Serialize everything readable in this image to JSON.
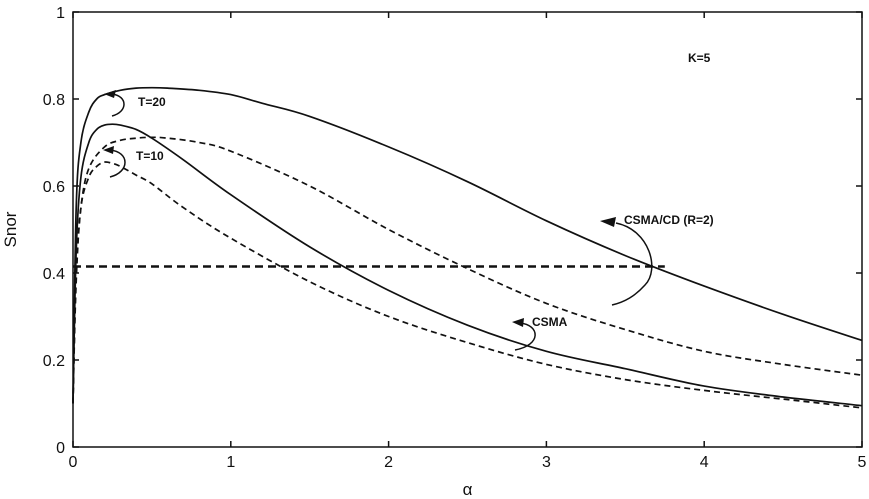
{
  "chart_data": {
    "type": "line",
    "title": "",
    "xlabel": "α",
    "ylabel": "Snor",
    "xlim": [
      0,
      5
    ],
    "ylim": [
      0,
      1
    ],
    "xticks": [
      0,
      1,
      2,
      3,
      4,
      5
    ],
    "yticks": [
      0,
      0.2,
      0.4,
      0.6,
      0.8,
      1
    ],
    "xtick_labels": [
      "0",
      "1",
      "2",
      "3",
      "4",
      "5"
    ],
    "ytick_labels": [
      "0",
      "0.2",
      "0.4",
      "0.6",
      "0.8",
      "1"
    ],
    "grid": false,
    "legend": "none",
    "annotations": [
      "K=5",
      "T=20",
      "T=10",
      "CSMA/CD (R=2)",
      "CSMA"
    ],
    "series": [
      {
        "style": "solid",
        "x": [
          0,
          0.02,
          0.05,
          0.1,
          0.15,
          0.2,
          0.3,
          0.4,
          0.5,
          0.6,
          0.8,
          1.0,
          1.2,
          1.5,
          2.0,
          2.5,
          3.0,
          3.5,
          4.0,
          4.5,
          5.0
        ],
        "y": [
          0.1,
          0.55,
          0.7,
          0.77,
          0.8,
          0.81,
          0.82,
          0.825,
          0.826,
          0.825,
          0.82,
          0.81,
          0.79,
          0.76,
          0.69,
          0.61,
          0.52,
          0.44,
          0.37,
          0.305,
          0.245
        ]
      },
      {
        "style": "dashed",
        "x": [
          0,
          0.02,
          0.05,
          0.1,
          0.2,
          0.3,
          0.4,
          0.5,
          0.6,
          0.8,
          1.0,
          1.5,
          2.0,
          2.5,
          3.0,
          3.5,
          4.0,
          4.5,
          5.0
        ],
        "y": [
          0.1,
          0.4,
          0.55,
          0.64,
          0.69,
          0.705,
          0.71,
          0.712,
          0.71,
          0.7,
          0.68,
          0.6,
          0.5,
          0.41,
          0.33,
          0.27,
          0.22,
          0.19,
          0.165
        ]
      },
      {
        "style": "solid",
        "x": [
          0,
          0.02,
          0.05,
          0.1,
          0.15,
          0.2,
          0.25,
          0.3,
          0.4,
          0.5,
          0.7,
          1.0,
          1.5,
          2.0,
          2.5,
          3.0,
          3.5,
          4.0,
          4.5,
          5.0
        ],
        "y": [
          0.1,
          0.45,
          0.62,
          0.7,
          0.73,
          0.74,
          0.742,
          0.74,
          0.73,
          0.71,
          0.66,
          0.58,
          0.46,
          0.36,
          0.28,
          0.22,
          0.18,
          0.14,
          0.115,
          0.095
        ]
      },
      {
        "style": "dashed",
        "x": [
          0,
          0.02,
          0.05,
          0.1,
          0.15,
          0.2,
          0.25,
          0.3,
          0.4,
          0.5,
          0.7,
          1.0,
          1.5,
          2.0,
          2.5,
          3.0,
          3.5,
          4.0,
          4.5,
          5.0
        ],
        "y": [
          0.1,
          0.38,
          0.55,
          0.62,
          0.645,
          0.655,
          0.652,
          0.645,
          0.625,
          0.605,
          0.55,
          0.48,
          0.38,
          0.3,
          0.24,
          0.19,
          0.155,
          0.13,
          0.11,
          0.09
        ]
      },
      {
        "style": "dashed",
        "x": [
          0,
          3.75
        ],
        "y": [
          0.415,
          0.415
        ]
      }
    ]
  }
}
